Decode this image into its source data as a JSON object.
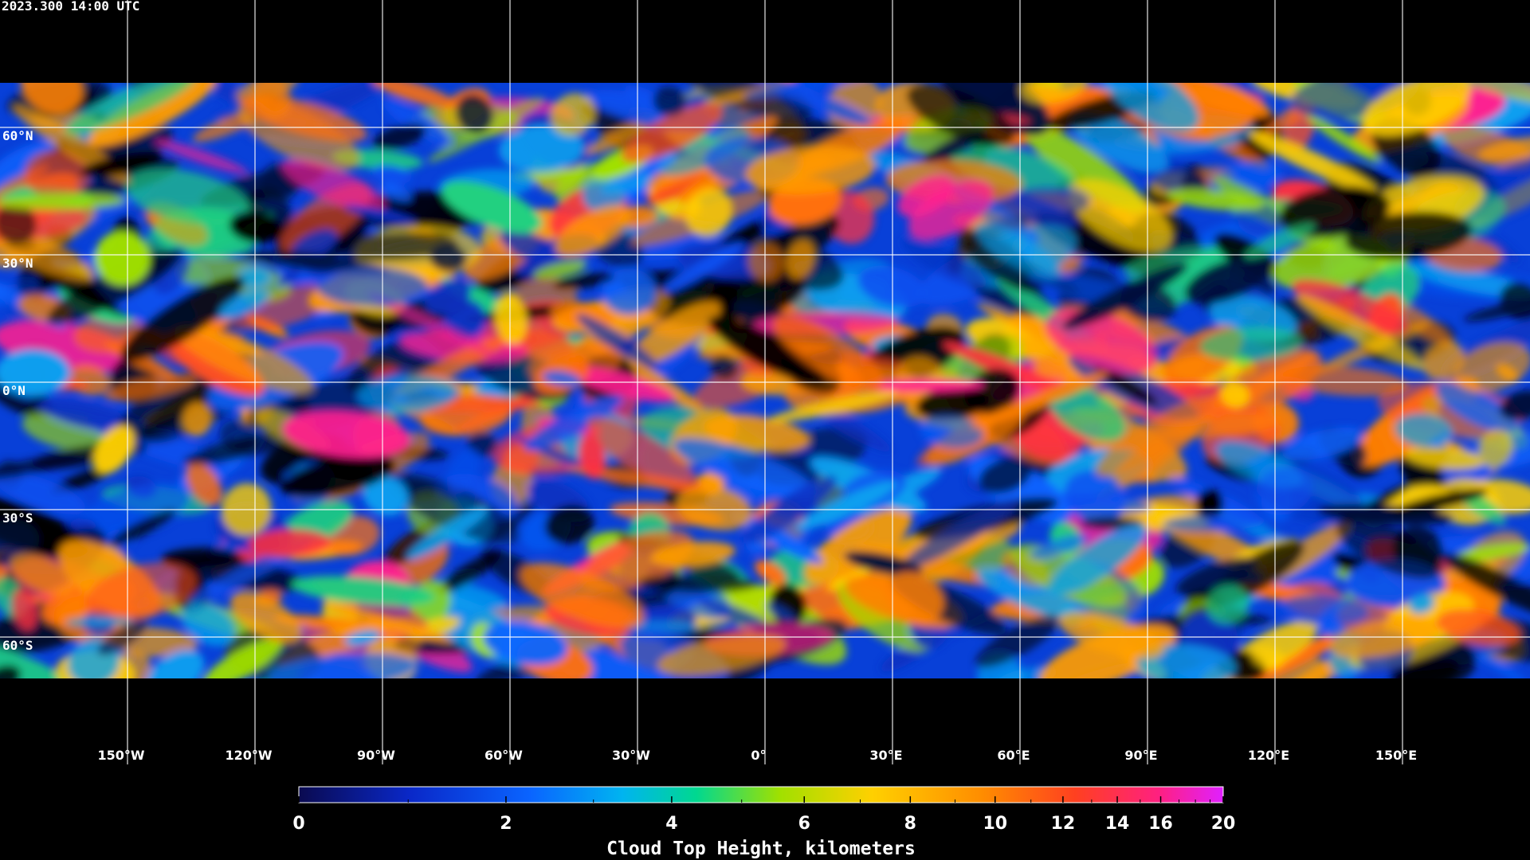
{
  "header": {
    "timestamp": "2023.300 14:00 UTC"
  },
  "map": {
    "lat_grid": [
      {
        "value": 60,
        "label": "60°N"
      },
      {
        "value": 30,
        "label": "30°N"
      },
      {
        "value": 0,
        "label": "0°N"
      },
      {
        "value": -30,
        "label": "30°S"
      },
      {
        "value": -60,
        "label": "60°S"
      }
    ],
    "lon_grid": [
      {
        "value": -150,
        "label": "150°W"
      },
      {
        "value": -120,
        "label": "120°W"
      },
      {
        "value": -90,
        "label": "90°W"
      },
      {
        "value": -60,
        "label": "60°W"
      },
      {
        "value": -30,
        "label": "30°W"
      },
      {
        "value": 0,
        "label": "0°"
      },
      {
        "value": 30,
        "label": "30°E"
      },
      {
        "value": 60,
        "label": "60°E"
      },
      {
        "value": 90,
        "label": "90°E"
      },
      {
        "value": 120,
        "label": "120°E"
      },
      {
        "value": 150,
        "label": "150°E"
      }
    ]
  },
  "colorbar": {
    "title": "Cloud Top Height, kilometers",
    "range": [
      0,
      20
    ],
    "ticks": [
      0,
      2,
      4,
      6,
      8,
      10,
      12,
      14,
      16,
      20
    ]
  }
}
